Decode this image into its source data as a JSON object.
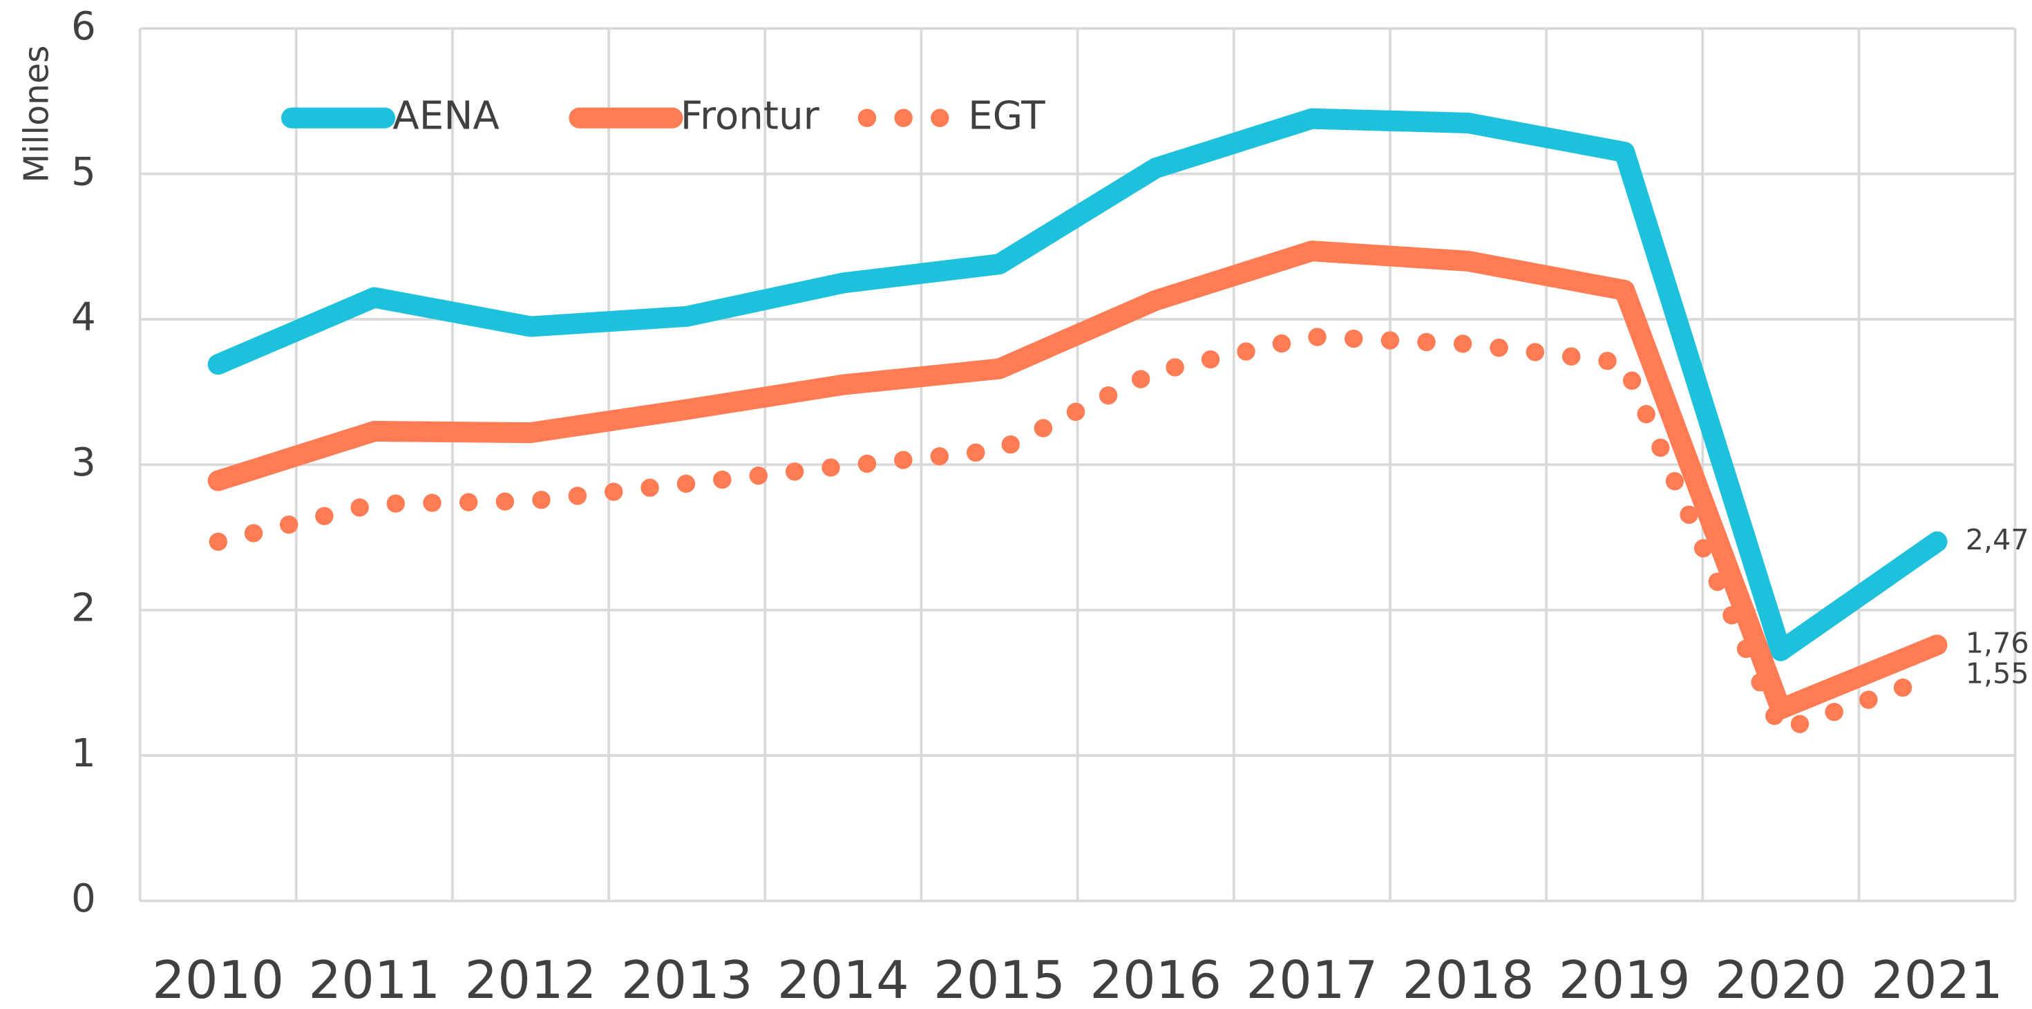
{
  "chart_data": {
    "type": "line",
    "y_label": "Millones",
    "categories": [
      "2010",
      "2011",
      "2012",
      "2013",
      "2014",
      "2015",
      "2016",
      "2017",
      "2018",
      "2019",
      "2020",
      "2021"
    ],
    "series": [
      {
        "name": "AENA",
        "color": "#1ec1dc",
        "dash": "solid",
        "values": [
          3.69,
          4.15,
          3.95,
          4.02,
          4.25,
          4.38,
          5.04,
          5.38,
          5.35,
          5.15,
          1.72,
          2.47
        ],
        "value_labels": [
          null,
          null,
          null,
          null,
          null,
          null,
          null,
          null,
          null,
          null,
          null,
          "2,47"
        ]
      },
      {
        "name": "Frontur",
        "color": "#ff7b54",
        "dash": "solid",
        "values": [
          2.89,
          3.23,
          3.22,
          3.38,
          3.55,
          3.66,
          4.13,
          4.47,
          4.4,
          4.2,
          1.32,
          1.76
        ],
        "value_labels": [
          null,
          null,
          null,
          null,
          null,
          null,
          null,
          null,
          null,
          null,
          null,
          "1,76"
        ]
      },
      {
        "name": "EGT",
        "color": "#ff7b54",
        "dash": "dotted",
        "values": [
          2.47,
          2.73,
          2.75,
          2.87,
          2.99,
          3.1,
          3.64,
          3.88,
          3.83,
          3.7,
          1.17,
          1.55
        ],
        "value_labels": [
          null,
          null,
          null,
          null,
          null,
          null,
          null,
          null,
          null,
          null,
          null,
          "1,55"
        ]
      }
    ],
    "ylim": [
      0,
      6
    ],
    "yticks": [
      0,
      1,
      2,
      3,
      4,
      5,
      6
    ],
    "grid": true,
    "legend": "top-left"
  }
}
